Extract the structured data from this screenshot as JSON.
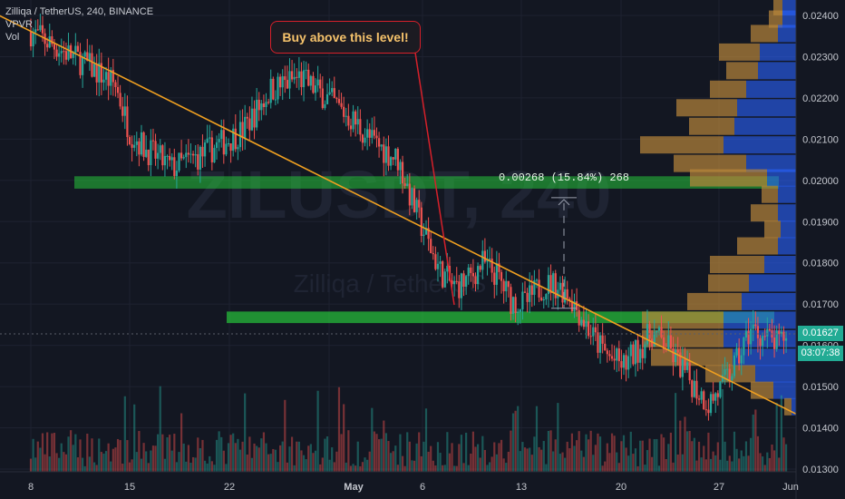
{
  "legend": {
    "symbol_line": "Zilliqa / TetherUS, 240, BINANCE",
    "indicator_1": "VPVR",
    "indicator_2": "Vol"
  },
  "watermark": {
    "ticker": "ZILUSDT, 240",
    "name": "Zilliqa / TetherUS"
  },
  "annotation": {
    "callout_text": "Buy above this level!",
    "measure_label": "0.00268 (15.84%) 268"
  },
  "price_axis": {
    "last_price": "0.01627",
    "countdown": "03:07:38"
  },
  "colors": {
    "background": "#131722",
    "up_candle": "#26a69a",
    "down_candle": "#ef5350",
    "trendline": "#f0a020",
    "zone": "#26c43a",
    "vpvr_up": "#2962ff",
    "vpvr_down": "#b8863b",
    "callout_border": "#d6202a",
    "callout_text": "#f5c26b"
  },
  "chart_data": {
    "type": "candlestick",
    "symbol": "ZILUSDT",
    "timeframe": "240",
    "exchange": "BINANCE",
    "ylim": [
      0.0129,
      0.0245
    ],
    "y_ticks": [
      "0.02400",
      "0.02300",
      "0.02200",
      "0.02100",
      "0.02000",
      "0.01900",
      "0.01800",
      "0.01700",
      "0.01600",
      "0.01500",
      "0.01400",
      "0.01300"
    ],
    "x_ticks": [
      "8",
      "15",
      "22",
      "May",
      "6",
      "13",
      "20",
      "27",
      "Jun"
    ],
    "close_path": [
      [
        0,
        0.0236
      ],
      [
        2,
        0.0232
      ],
      [
        4,
        0.0228
      ],
      [
        6,
        0.0223
      ],
      [
        7,
        0.0212
      ],
      [
        8,
        0.0208
      ],
      [
        10,
        0.0203
      ],
      [
        12,
        0.0206
      ],
      [
        14,
        0.021
      ],
      [
        15,
        0.0212
      ],
      [
        17,
        0.0222
      ],
      [
        19,
        0.0225
      ],
      [
        21,
        0.022
      ],
      [
        23,
        0.0214
      ],
      [
        24,
        0.021
      ],
      [
        26,
        0.0205
      ],
      [
        27,
        0.0195
      ],
      [
        28,
        0.0186
      ],
      [
        29,
        0.0178
      ],
      [
        30,
        0.0174
      ],
      [
        31,
        0.0176
      ],
      [
        32,
        0.018
      ],
      [
        33,
        0.0177
      ],
      [
        34,
        0.0171
      ],
      [
        35,
        0.017
      ],
      [
        36,
        0.0174
      ],
      [
        37,
        0.0175
      ],
      [
        38,
        0.0173
      ],
      [
        39,
        0.0167
      ],
      [
        40,
        0.0161
      ],
      [
        41,
        0.0157
      ],
      [
        42,
        0.0155
      ],
      [
        43,
        0.0159
      ],
      [
        44,
        0.0163
      ],
      [
        45,
        0.016
      ],
      [
        46,
        0.0155
      ],
      [
        47,
        0.015
      ],
      [
        48,
        0.0146
      ],
      [
        49,
        0.015
      ],
      [
        50,
        0.0156
      ],
      [
        51,
        0.0164
      ],
      [
        52,
        0.0162
      ],
      [
        53,
        0.016
      ],
      [
        53.5,
        0.0163
      ]
    ],
    "zones": [
      {
        "from": 0.0198,
        "to": 0.0201,
        "color": "zone"
      },
      {
        "from": 0.01654,
        "to": 0.01682,
        "color": "zone"
      }
    ],
    "trendline": {
      "start": [
        -4,
        0.0243
      ],
      "end": [
        55,
        0.0142
      ]
    },
    "measure": {
      "from": 0.0169,
      "to": 0.01958,
      "change": "0.00268 (15.84%) 268"
    },
    "vpvr": [
      {
        "price": 0.0242,
        "up": 15,
        "down": 10
      },
      {
        "price": 0.0239,
        "up": 15,
        "down": 15
      },
      {
        "price": 0.02355,
        "up": 20,
        "down": 30
      },
      {
        "price": 0.0231,
        "up": 40,
        "down": 45
      },
      {
        "price": 0.02265,
        "up": 42,
        "down": 35
      },
      {
        "price": 0.0222,
        "up": 55,
        "down": 40
      },
      {
        "price": 0.02175,
        "up": 65,
        "down": 67
      },
      {
        "price": 0.0213,
        "up": 68,
        "down": 50
      },
      {
        "price": 0.02085,
        "up": 80,
        "down": 92
      },
      {
        "price": 0.0204,
        "up": 55,
        "down": 80
      },
      {
        "price": 0.02005,
        "up": 32,
        "down": 85
      },
      {
        "price": 0.01965,
        "up": 20,
        "down": 18
      },
      {
        "price": 0.0192,
        "up": 20,
        "down": 30
      },
      {
        "price": 0.0188,
        "up": 17,
        "down": 18
      },
      {
        "price": 0.0184,
        "up": 20,
        "down": 45
      },
      {
        "price": 0.01795,
        "up": 35,
        "down": 60
      },
      {
        "price": 0.0175,
        "up": 52,
        "down": 45
      },
      {
        "price": 0.01705,
        "up": 60,
        "down": 60
      },
      {
        "price": 0.0166,
        "up": 80,
        "down": 90
      },
      {
        "price": 0.01615,
        "up": 80,
        "down": 90
      },
      {
        "price": 0.0157,
        "up": 70,
        "down": 90
      },
      {
        "price": 0.0153,
        "up": 45,
        "down": 55
      },
      {
        "price": 0.0149,
        "up": 25,
        "down": 25
      },
      {
        "price": 0.0145,
        "up": 5,
        "down": 8
      }
    ]
  }
}
